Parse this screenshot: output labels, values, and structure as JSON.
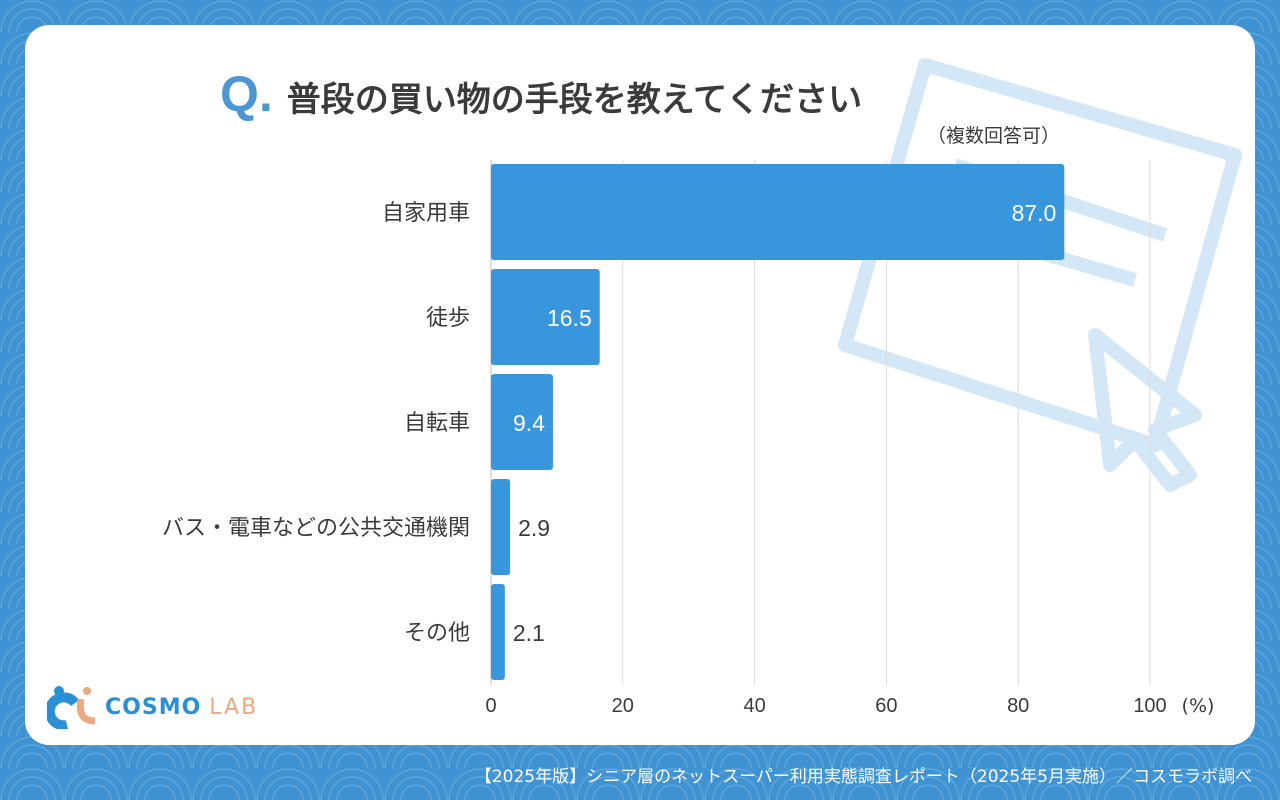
{
  "header": {
    "q": "Q.",
    "title": "普段の買い物の手段を教えてください",
    "note": "（複数回答可）"
  },
  "logo": {
    "cosmo": "COSMO",
    "lab": "LAB"
  },
  "footer": "【2025年版】シニア層のネットスーパー利用実態調査レポート（2025年5月実施）／コスモラボ調べ",
  "colors": {
    "bar": "#3896dc",
    "accent": "#4c97d3"
  },
  "chart_data": {
    "type": "bar",
    "orientation": "horizontal",
    "categories": [
      "自家用車",
      "徒歩",
      "自転車",
      "バス・電車などの公共交通機関",
      "その他"
    ],
    "values": [
      87.0,
      16.5,
      9.4,
      2.9,
      2.1
    ],
    "labels": [
      "87.0",
      "16.5",
      "9.4",
      "2.9",
      "2.1"
    ],
    "xlim": [
      0,
      100
    ],
    "xticks": [
      0,
      20,
      40,
      60,
      80,
      100
    ],
    "xunit": "(%)",
    "grid": true
  }
}
